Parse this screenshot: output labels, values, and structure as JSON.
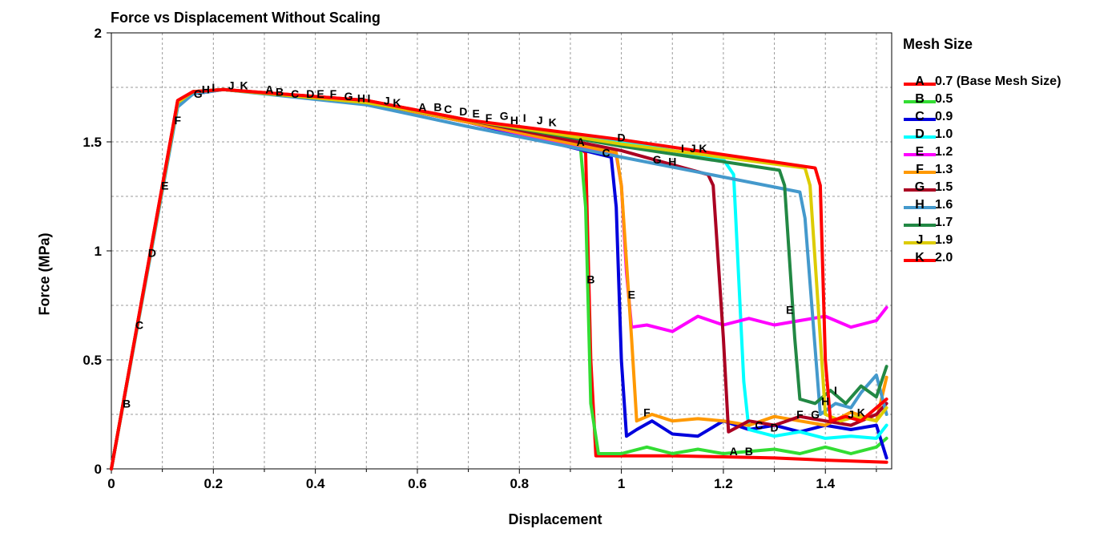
{
  "chart_data": {
    "type": "line",
    "title": "Force vs Displacement Without Scaling",
    "xlabel": "Displacement",
    "ylabel": "Force (MPa)",
    "xlim": [
      0,
      1.53
    ],
    "ylim": [
      0,
      2
    ],
    "x_ticks": [
      0,
      0.2,
      0.4,
      0.6,
      0.8,
      1,
      1.2,
      1.4
    ],
    "x_tick_labels": [
      "0",
      "0.2",
      "0.4",
      "0.6",
      "0.8",
      "1",
      "1.2",
      "1.4"
    ],
    "y_ticks": [
      0,
      0.5,
      1,
      1.5,
      2
    ],
    "y_tick_labels": [
      "0",
      "0.5",
      "1",
      "1.5",
      "2"
    ],
    "grid": true,
    "legend": {
      "title": "Mesh Size",
      "position": "right"
    },
    "series": [
      {
        "letter": "A",
        "name": "0.7 (Base Mesh Size)",
        "color": "#ff0000",
        "points": [
          [
            0,
            0
          ],
          [
            0.13,
            1.69
          ],
          [
            0.16,
            1.73
          ],
          [
            0.22,
            1.74
          ],
          [
            0.5,
            1.69
          ],
          [
            0.7,
            1.6
          ],
          [
            0.92,
            1.47
          ],
          [
            0.93,
            1.45
          ],
          [
            0.94,
            0.5
          ],
          [
            0.95,
            0.06
          ],
          [
            1.0,
            0.06
          ],
          [
            1.1,
            0.06
          ],
          [
            1.2,
            0.055
          ],
          [
            1.3,
            0.05
          ],
          [
            1.4,
            0.04
          ],
          [
            1.52,
            0.03
          ]
        ],
        "marker_text": [
          [
            0.92,
            1.5
          ],
          [
            0.31,
            1.74
          ],
          [
            0.61,
            1.66
          ],
          [
            1.22,
            0.08
          ]
        ]
      },
      {
        "letter": "B",
        "name": "0.5",
        "color": "#33dd33",
        "points": [
          [
            0,
            0
          ],
          [
            0.13,
            1.68
          ],
          [
            0.16,
            1.72
          ],
          [
            0.22,
            1.74
          ],
          [
            0.5,
            1.68
          ],
          [
            0.7,
            1.59
          ],
          [
            0.92,
            1.47
          ],
          [
            0.93,
            1.2
          ],
          [
            0.94,
            0.3
          ],
          [
            0.955,
            0.07
          ],
          [
            1.0,
            0.07
          ],
          [
            1.05,
            0.1
          ],
          [
            1.1,
            0.07
          ],
          [
            1.15,
            0.09
          ],
          [
            1.2,
            0.07
          ],
          [
            1.25,
            0.08
          ],
          [
            1.3,
            0.09
          ],
          [
            1.35,
            0.07
          ],
          [
            1.4,
            0.1
          ],
          [
            1.45,
            0.07
          ],
          [
            1.5,
            0.1
          ],
          [
            1.52,
            0.14
          ]
        ],
        "marker_text": [
          [
            0.03,
            0.3
          ],
          [
            0.33,
            1.73
          ],
          [
            0.64,
            1.66
          ],
          [
            0.94,
            0.87
          ],
          [
            1.25,
            0.08
          ]
        ]
      },
      {
        "letter": "C",
        "name": "0.9",
        "color": "#0000dd",
        "points": [
          [
            0,
            0
          ],
          [
            0.13,
            1.68
          ],
          [
            0.16,
            1.73
          ],
          [
            0.22,
            1.74
          ],
          [
            0.5,
            1.68
          ],
          [
            0.7,
            1.59
          ],
          [
            0.98,
            1.43
          ],
          [
            0.99,
            1.2
          ],
          [
            1.0,
            0.5
          ],
          [
            1.01,
            0.15
          ],
          [
            1.03,
            0.18
          ],
          [
            1.06,
            0.22
          ],
          [
            1.1,
            0.16
          ],
          [
            1.15,
            0.15
          ],
          [
            1.2,
            0.22
          ],
          [
            1.25,
            0.18
          ],
          [
            1.3,
            0.2
          ],
          [
            1.35,
            0.17
          ],
          [
            1.4,
            0.2
          ],
          [
            1.45,
            0.18
          ],
          [
            1.5,
            0.2
          ],
          [
            1.52,
            0.05
          ]
        ],
        "marker_text": [
          [
            0.055,
            0.66
          ],
          [
            0.36,
            1.72
          ],
          [
            0.66,
            1.65
          ],
          [
            0.97,
            1.45
          ],
          [
            1.27,
            0.2
          ]
        ]
      },
      {
        "letter": "D",
        "name": "1.0",
        "color": "#00ffff",
        "points": [
          [
            0,
            0
          ],
          [
            0.13,
            1.67
          ],
          [
            0.16,
            1.72
          ],
          [
            0.22,
            1.74
          ],
          [
            0.5,
            1.68
          ],
          [
            0.7,
            1.59
          ],
          [
            1.0,
            1.5
          ],
          [
            1.2,
            1.42
          ],
          [
            1.22,
            1.35
          ],
          [
            1.24,
            0.4
          ],
          [
            1.25,
            0.18
          ],
          [
            1.3,
            0.15
          ],
          [
            1.35,
            0.17
          ],
          [
            1.4,
            0.14
          ],
          [
            1.45,
            0.15
          ],
          [
            1.5,
            0.14
          ],
          [
            1.52,
            0.2
          ]
        ],
        "marker_text": [
          [
            0.08,
            0.99
          ],
          [
            0.39,
            1.72
          ],
          [
            0.69,
            1.64
          ],
          [
            1.0,
            1.52
          ],
          [
            1.3,
            0.19
          ]
        ]
      },
      {
        "letter": "E",
        "name": "1.2",
        "color": "#ff00ff",
        "points": [
          [
            0,
            0
          ],
          [
            0.13,
            1.67
          ],
          [
            0.16,
            1.72
          ],
          [
            0.22,
            1.74
          ],
          [
            0.5,
            1.68
          ],
          [
            0.7,
            1.59
          ],
          [
            0.99,
            1.44
          ],
          [
            1.0,
            1.3
          ],
          [
            1.01,
            0.9
          ],
          [
            1.02,
            0.65
          ],
          [
            1.05,
            0.66
          ],
          [
            1.1,
            0.63
          ],
          [
            1.15,
            0.7
          ],
          [
            1.2,
            0.66
          ],
          [
            1.25,
            0.69
          ],
          [
            1.3,
            0.66
          ],
          [
            1.35,
            0.68
          ],
          [
            1.4,
            0.7
          ],
          [
            1.45,
            0.65
          ],
          [
            1.5,
            0.68
          ],
          [
            1.52,
            0.74
          ]
        ],
        "marker_text": [
          [
            0.105,
            1.3
          ],
          [
            0.41,
            1.72
          ],
          [
            0.715,
            1.63
          ],
          [
            1.02,
            0.8
          ],
          [
            1.33,
            0.73
          ]
        ]
      },
      {
        "letter": "F",
        "name": "1.3",
        "color": "#ff9900",
        "points": [
          [
            0,
            0
          ],
          [
            0.13,
            1.68
          ],
          [
            0.16,
            1.73
          ],
          [
            0.22,
            1.74
          ],
          [
            0.5,
            1.68
          ],
          [
            0.7,
            1.59
          ],
          [
            0.99,
            1.45
          ],
          [
            1.0,
            1.3
          ],
          [
            1.02,
            0.6
          ],
          [
            1.03,
            0.22
          ],
          [
            1.06,
            0.25
          ],
          [
            1.1,
            0.22
          ],
          [
            1.15,
            0.23
          ],
          [
            1.2,
            0.22
          ],
          [
            1.25,
            0.2
          ],
          [
            1.3,
            0.24
          ],
          [
            1.35,
            0.22
          ],
          [
            1.4,
            0.2
          ],
          [
            1.45,
            0.26
          ],
          [
            1.5,
            0.22
          ],
          [
            1.52,
            0.42
          ]
        ],
        "marker_text": [
          [
            0.13,
            1.6
          ],
          [
            0.435,
            1.72
          ],
          [
            0.74,
            1.61
          ],
          [
            1.05,
            0.26
          ],
          [
            1.35,
            0.25
          ]
        ]
      },
      {
        "letter": "G",
        "name": "1.5",
        "color": "#aa0022",
        "points": [
          [
            0,
            0
          ],
          [
            0.13,
            1.68
          ],
          [
            0.16,
            1.73
          ],
          [
            0.22,
            1.74
          ],
          [
            0.5,
            1.68
          ],
          [
            0.7,
            1.6
          ],
          [
            1.0,
            1.46
          ],
          [
            1.17,
            1.35
          ],
          [
            1.18,
            1.3
          ],
          [
            1.2,
            0.6
          ],
          [
            1.21,
            0.17
          ],
          [
            1.25,
            0.22
          ],
          [
            1.3,
            0.2
          ],
          [
            1.35,
            0.24
          ],
          [
            1.4,
            0.22
          ],
          [
            1.45,
            0.2
          ],
          [
            1.5,
            0.25
          ],
          [
            1.52,
            0.3
          ]
        ],
        "marker_text": [
          [
            0.17,
            1.72
          ],
          [
            0.465,
            1.71
          ],
          [
            0.77,
            1.62
          ],
          [
            1.07,
            1.42
          ],
          [
            1.38,
            0.25
          ]
        ]
      },
      {
        "letter": "H",
        "name": "1.6",
        "color": "#4499cc",
        "points": [
          [
            0,
            0
          ],
          [
            0.13,
            1.66
          ],
          [
            0.16,
            1.72
          ],
          [
            0.22,
            1.74
          ],
          [
            0.5,
            1.67
          ],
          [
            0.7,
            1.57
          ],
          [
            1.0,
            1.43
          ],
          [
            1.35,
            1.27
          ],
          [
            1.36,
            1.15
          ],
          [
            1.38,
            0.55
          ],
          [
            1.39,
            0.25
          ],
          [
            1.42,
            0.3
          ],
          [
            1.45,
            0.28
          ],
          [
            1.47,
            0.35
          ],
          [
            1.5,
            0.43
          ],
          [
            1.52,
            0.25
          ]
        ],
        "marker_text": [
          [
            0.185,
            1.74
          ],
          [
            0.49,
            1.7
          ],
          [
            0.79,
            1.6
          ],
          [
            1.1,
            1.41
          ],
          [
            1.4,
            0.31
          ]
        ]
      },
      {
        "letter": "I",
        "name": "1.7",
        "color": "#228844",
        "points": [
          [
            0,
            0
          ],
          [
            0.13,
            1.68
          ],
          [
            0.16,
            1.73
          ],
          [
            0.22,
            1.74
          ],
          [
            0.5,
            1.68
          ],
          [
            0.7,
            1.6
          ],
          [
            1.0,
            1.48
          ],
          [
            1.31,
            1.37
          ],
          [
            1.32,
            1.3
          ],
          [
            1.34,
            0.6
          ],
          [
            1.35,
            0.32
          ],
          [
            1.38,
            0.3
          ],
          [
            1.41,
            0.36
          ],
          [
            1.44,
            0.3
          ],
          [
            1.47,
            0.38
          ],
          [
            1.5,
            0.33
          ],
          [
            1.52,
            0.47
          ]
        ],
        "marker_text": [
          [
            0.2,
            1.75
          ],
          [
            0.505,
            1.7
          ],
          [
            0.81,
            1.61
          ],
          [
            1.12,
            1.47
          ],
          [
            1.42,
            0.36
          ]
        ]
      },
      {
        "letter": "J",
        "name": "1.9",
        "color": "#ddcc00",
        "points": [
          [
            0,
            0
          ],
          [
            0.13,
            1.68
          ],
          [
            0.16,
            1.73
          ],
          [
            0.22,
            1.74
          ],
          [
            0.5,
            1.68
          ],
          [
            0.7,
            1.6
          ],
          [
            1.0,
            1.49
          ],
          [
            1.36,
            1.38
          ],
          [
            1.37,
            1.3
          ],
          [
            1.39,
            0.6
          ],
          [
            1.4,
            0.25
          ],
          [
            1.43,
            0.22
          ],
          [
            1.46,
            0.24
          ],
          [
            1.5,
            0.22
          ],
          [
            1.52,
            0.28
          ]
        ],
        "marker_text": [
          [
            0.235,
            1.76
          ],
          [
            0.54,
            1.69
          ],
          [
            0.84,
            1.6
          ],
          [
            1.14,
            1.47
          ],
          [
            1.45,
            0.25
          ]
        ]
      },
      {
        "letter": "K",
        "name": "2.0",
        "color": "#ff0000",
        "points": [
          [
            0,
            0
          ],
          [
            0.13,
            1.69
          ],
          [
            0.16,
            1.73
          ],
          [
            0.22,
            1.74
          ],
          [
            0.5,
            1.69
          ],
          [
            0.7,
            1.6
          ],
          [
            1.0,
            1.51
          ],
          [
            1.38,
            1.38
          ],
          [
            1.39,
            1.3
          ],
          [
            1.4,
            0.5
          ],
          [
            1.41,
            0.22
          ],
          [
            1.44,
            0.24
          ],
          [
            1.47,
            0.22
          ],
          [
            1.5,
            0.28
          ],
          [
            1.52,
            0.32
          ]
        ],
        "marker_text": [
          [
            0.26,
            1.76
          ],
          [
            0.56,
            1.68
          ],
          [
            0.865,
            1.59
          ],
          [
            1.16,
            1.47
          ],
          [
            1.47,
            0.26
          ]
        ]
      }
    ]
  }
}
